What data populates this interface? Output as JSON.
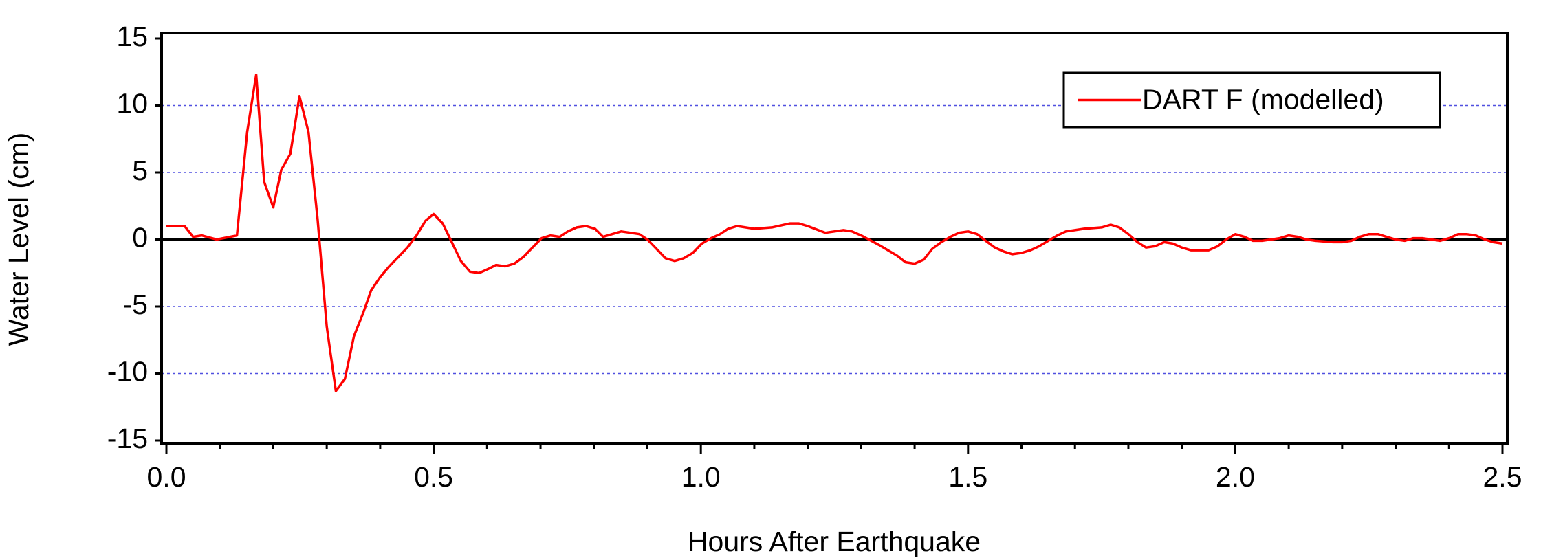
{
  "chart_data": {
    "type": "line",
    "x_label": "Hours After Earthquake",
    "y_label": "Water Level (cm)",
    "xlim": [
      0,
      2.5
    ],
    "ylim": [
      -15,
      15
    ],
    "xticks": [
      {
        "value": 0,
        "label": "0.0"
      },
      0.5,
      {
        "value": 1,
        "label": "1.0"
      },
      1.5,
      {
        "value": 2,
        "label": "2.0"
      },
      2.5
    ],
    "yticks": [
      15,
      10,
      5,
      0,
      -5,
      -10,
      -15
    ],
    "grid": true,
    "grid_color": "#5050e0",
    "legend_position": "upper right",
    "x": [
      0,
      0.034,
      0.05,
      0.066,
      0.094,
      0.132,
      0.151,
      0.168,
      0.183,
      0.2,
      0.215,
      0.232,
      0.249,
      0.266,
      0.283,
      0.3,
      0.317,
      0.334,
      0.351,
      0.368,
      0.383,
      0.4,
      0.417,
      0.434,
      0.451,
      0.468,
      0.485,
      0.5,
      0.517,
      0.534,
      0.551,
      0.568,
      0.585,
      0.602,
      0.617,
      0.634,
      0.651,
      0.668,
      0.685,
      0.702,
      0.719,
      0.736,
      0.751,
      0.768,
      0.785,
      0.802,
      0.817,
      0.834,
      0.851,
      0.868,
      0.885,
      0.9,
      0.917,
      0.934,
      0.951,
      0.968,
      0.985,
      1.002,
      1.019,
      1.036,
      1.051,
      1.068,
      1.1,
      1.133,
      1.167,
      1.183,
      1.2,
      1.233,
      1.267,
      1.283,
      1.3,
      1.333,
      1.367,
      1.383,
      1.4,
      1.417,
      1.433,
      1.45,
      1.467,
      1.483,
      1.5,
      1.517,
      1.533,
      1.55,
      1.567,
      1.583,
      1.6,
      1.617,
      1.633,
      1.65,
      1.667,
      1.683,
      1.7,
      1.717,
      1.75,
      1.767,
      1.783,
      1.8,
      1.817,
      1.833,
      1.85,
      1.867,
      1.883,
      1.9,
      1.917,
      1.933,
      1.95,
      1.967,
      1.983,
      2.0,
      2.017,
      2.033,
      2.05,
      2.067,
      2.083,
      2.1,
      2.117,
      2.133,
      2.15,
      2.183,
      2.2,
      2.217,
      2.233,
      2.25,
      2.267,
      2.283,
      2.3,
      2.317,
      2.333,
      2.35,
      2.367,
      2.383,
      2.4,
      2.417,
      2.433,
      2.45,
      2.467,
      2.483,
      2.5
    ],
    "series": [
      {
        "name": "DART F (modelled)",
        "color": "#ff0000",
        "values": [
          1.0,
          1.0,
          0.2,
          0.3,
          0.0,
          0.3,
          8,
          12.3,
          4.3,
          2.4,
          5.2,
          6.4,
          10.7,
          8,
          1.5,
          -6.5,
          -11.3,
          -10.4,
          -7.2,
          -5.5,
          -3.8,
          -2.8,
          -2.0,
          -1.3,
          -0.6,
          0.3,
          1.4,
          1.9,
          1.2,
          -0.2,
          -1.6,
          -2.4,
          -2.5,
          -2.2,
          -1.9,
          -2.0,
          -1.8,
          -1.3,
          -0.6,
          0.1,
          0.3,
          0.2,
          0.6,
          0.9,
          1.0,
          0.8,
          0.2,
          0.4,
          0.6,
          0.5,
          0.4,
          0.0,
          -0.7,
          -1.4,
          -1.6,
          -1.4,
          -1.0,
          -0.3,
          0.1,
          0.4,
          0.8,
          1.0,
          0.8,
          0.9,
          1.2,
          1.2,
          1.0,
          0.5,
          0.7,
          0.6,
          0.3,
          -0.4,
          -1.2,
          -1.7,
          -1.8,
          -1.5,
          -0.7,
          -0.2,
          0.2,
          0.5,
          0.6,
          0.4,
          -0.1,
          -0.6,
          -0.9,
          -1.1,
          -1.0,
          -0.8,
          -0.5,
          -0.1,
          0.3,
          0.6,
          0.7,
          0.8,
          0.9,
          1.1,
          0.9,
          0.4,
          -0.2,
          -0.6,
          -0.5,
          -0.2,
          -0.3,
          -0.6,
          -0.8,
          -0.8,
          -0.8,
          -0.5,
          0.0,
          0.4,
          0.2,
          -0.1,
          -0.1,
          0.0,
          0.1,
          0.3,
          0.2,
          0.0,
          -0.1,
          -0.2,
          -0.2,
          -0.1,
          0.2,
          0.4,
          0.4,
          0.2,
          0.0,
          -0.1,
          0.1,
          0.1,
          0.0,
          -0.1,
          0.1,
          0.4,
          0.4,
          0.3,
          0.0,
          -0.2,
          -0.3
        ]
      }
    ]
  }
}
